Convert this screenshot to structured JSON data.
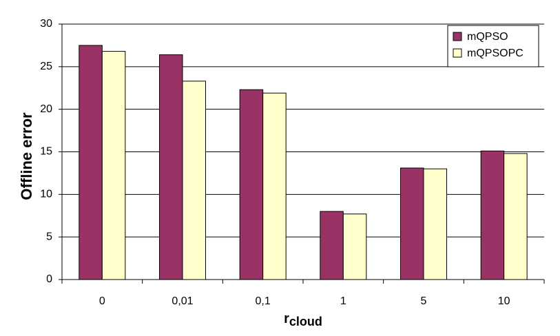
{
  "chart_data": {
    "type": "bar",
    "x_label": "r",
    "x_label_sub": "cloud",
    "y_label": "Offline error",
    "categories": [
      "0",
      "0,01",
      "0,1",
      "1",
      "5",
      "10"
    ],
    "series": [
      {
        "name": "mQPSO",
        "color": "#993366",
        "values": [
          27.5,
          26.4,
          22.3,
          8.0,
          13.1,
          15.1
        ]
      },
      {
        "name": "mQPSOPC",
        "color": "#ffffcc",
        "values": [
          26.8,
          23.3,
          21.9,
          7.7,
          13.0,
          14.8
        ]
      }
    ],
    "ylim": [
      0,
      30
    ],
    "yticks": [
      0,
      5,
      10,
      15,
      20,
      25,
      30
    ],
    "grid": true,
    "legend": "top-right"
  }
}
